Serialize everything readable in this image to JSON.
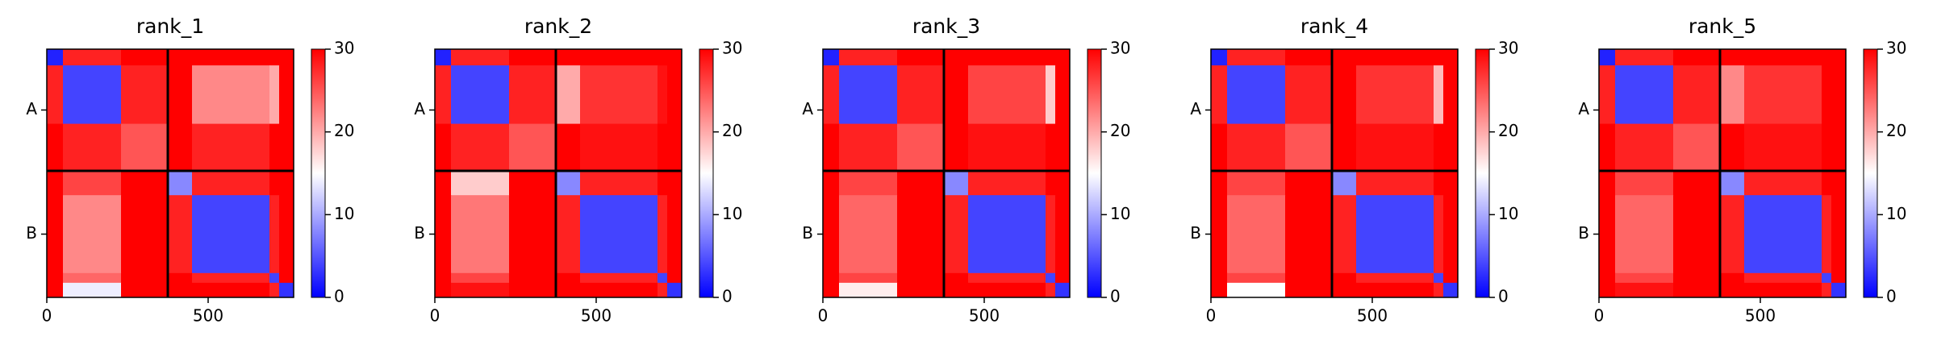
{
  "chart_data": [
    {
      "type": "heatmap",
      "title": "rank_1",
      "xlim": [
        0,
        765
      ],
      "xticks": [
        0,
        500
      ],
      "ylim": [
        765,
        0
      ],
      "yticks": [
        {
          "value": 187.5,
          "label": "A"
        },
        {
          "value": 570,
          "label": "B"
        }
      ],
      "chain_breaks": [
        375
      ],
      "bounds": [
        0,
        50,
        230,
        375,
        450,
        690,
        720,
        765
      ],
      "matrix": [
        [
          2,
          28,
          30,
          30,
          30,
          30,
          30
        ],
        [
          28,
          4,
          28,
          30,
          22,
          20,
          30
        ],
        [
          30,
          28,
          25,
          30,
          28,
          30,
          30
        ],
        [
          30,
          26,
          30,
          8,
          28,
          30,
          30
        ],
        [
          30,
          22,
          30,
          28,
          4,
          28,
          30
        ],
        [
          30,
          24,
          30,
          30,
          28,
          4,
          30
        ],
        [
          30,
          14,
          30,
          30,
          30,
          28,
          3
        ]
      ],
      "clim": [
        0,
        30
      ],
      "cticks": [
        0,
        10,
        20,
        30
      ],
      "colormap": [
        "#0000ff",
        "#ffffff",
        "#ff0000"
      ]
    },
    {
      "type": "heatmap",
      "title": "rank_2",
      "xlim": [
        0,
        765
      ],
      "xticks": [
        0,
        500
      ],
      "ylim": [
        765,
        0
      ],
      "yticks": [
        {
          "value": 187.5,
          "label": "A"
        },
        {
          "value": 570,
          "label": "B"
        }
      ],
      "chain_breaks": [
        375
      ],
      "bounds": [
        0,
        50,
        230,
        375,
        450,
        690,
        720,
        765
      ],
      "matrix": [
        [
          2,
          28,
          30,
          30,
          30,
          30,
          30
        ],
        [
          28,
          4,
          28,
          20,
          27,
          29,
          30
        ],
        [
          30,
          28,
          25,
          30,
          29,
          30,
          30
        ],
        [
          30,
          18,
          30,
          8,
          28,
          30,
          30
        ],
        [
          30,
          23,
          30,
          28,
          4,
          28,
          30
        ],
        [
          30,
          26,
          30,
          30,
          28,
          4,
          30
        ],
        [
          30,
          29,
          30,
          30,
          30,
          28,
          3
        ]
      ],
      "clim": [
        0,
        30
      ],
      "cticks": [
        0,
        10,
        20,
        30
      ],
      "colormap": [
        "#0000ff",
        "#ffffff",
        "#ff0000"
      ]
    },
    {
      "type": "heatmap",
      "title": "rank_3",
      "xlim": [
        0,
        765
      ],
      "xticks": [
        0,
        500
      ],
      "ylim": [
        765,
        0
      ],
      "yticks": [
        {
          "value": 187.5,
          "label": "A"
        },
        {
          "value": 570,
          "label": "B"
        }
      ],
      "chain_breaks": [
        375
      ],
      "bounds": [
        0,
        50,
        230,
        375,
        450,
        690,
        720,
        765
      ],
      "matrix": [
        [
          2,
          28,
          30,
          30,
          30,
          30,
          30
        ],
        [
          28,
          4,
          28,
          30,
          26,
          18,
          30
        ],
        [
          30,
          28,
          25,
          30,
          29,
          30,
          30
        ],
        [
          30,
          26,
          30,
          8,
          28,
          30,
          30
        ],
        [
          30,
          24,
          30,
          28,
          4,
          28,
          30
        ],
        [
          30,
          26,
          30,
          30,
          28,
          4,
          30
        ],
        [
          30,
          16,
          30,
          30,
          30,
          28,
          3
        ]
      ],
      "clim": [
        0,
        30
      ],
      "cticks": [
        0,
        10,
        20,
        30
      ],
      "colormap": [
        "#0000ff",
        "#ffffff",
        "#ff0000"
      ]
    },
    {
      "type": "heatmap",
      "title": "rank_4",
      "xlim": [
        0,
        765
      ],
      "xticks": [
        0,
        500
      ],
      "ylim": [
        765,
        0
      ],
      "yticks": [
        {
          "value": 187.5,
          "label": "A"
        },
        {
          "value": 570,
          "label": "B"
        }
      ],
      "chain_breaks": [
        375
      ],
      "bounds": [
        0,
        50,
        230,
        375,
        450,
        690,
        720,
        765
      ],
      "matrix": [
        [
          2,
          28,
          30,
          30,
          30,
          30,
          30
        ],
        [
          28,
          4,
          28,
          30,
          27,
          19,
          30
        ],
        [
          30,
          28,
          25,
          30,
          29,
          30,
          30
        ],
        [
          30,
          26,
          30,
          8,
          28,
          30,
          30
        ],
        [
          30,
          24,
          30,
          28,
          4,
          28,
          30
        ],
        [
          30,
          26,
          30,
          30,
          28,
          4,
          30
        ],
        [
          30,
          15,
          30,
          30,
          30,
          28,
          3
        ]
      ],
      "clim": [
        0,
        30
      ],
      "cticks": [
        0,
        10,
        20,
        30
      ],
      "colormap": [
        "#0000ff",
        "#ffffff",
        "#ff0000"
      ]
    },
    {
      "type": "heatmap",
      "title": "rank_5",
      "xlim": [
        0,
        765
      ],
      "xticks": [
        0,
        500
      ],
      "ylim": [
        765,
        0
      ],
      "yticks": [
        {
          "value": 187.5,
          "label": "A"
        },
        {
          "value": 570,
          "label": "B"
        }
      ],
      "chain_breaks": [
        375
      ],
      "bounds": [
        0,
        50,
        230,
        375,
        450,
        690,
        720,
        765
      ],
      "matrix": [
        [
          2,
          28,
          30,
          30,
          30,
          30,
          30
        ],
        [
          28,
          4,
          28,
          22,
          27,
          30,
          30
        ],
        [
          30,
          28,
          25,
          30,
          29,
          30,
          30
        ],
        [
          30,
          26,
          30,
          8,
          28,
          30,
          30
        ],
        [
          30,
          24,
          30,
          28,
          4,
          28,
          30
        ],
        [
          30,
          26,
          30,
          30,
          28,
          4,
          30
        ],
        [
          30,
          29,
          30,
          30,
          30,
          28,
          3
        ]
      ],
      "clim": [
        0,
        30
      ],
      "cticks": [
        0,
        10,
        20,
        30
      ],
      "colormap": [
        "#0000ff",
        "#ffffff",
        "#ff0000"
      ]
    }
  ]
}
